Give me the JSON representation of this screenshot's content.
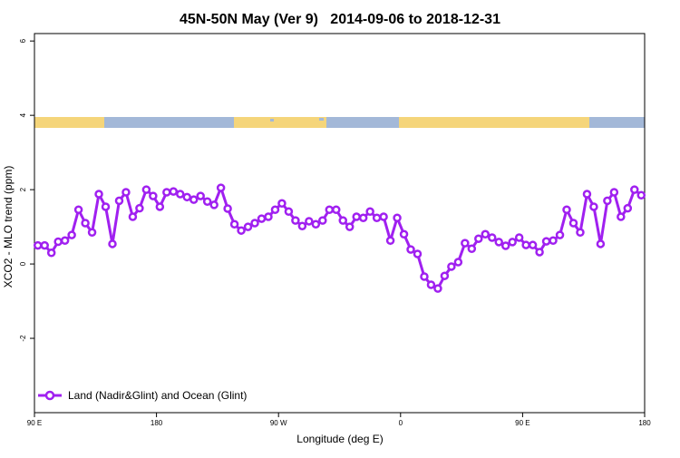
{
  "chart_data": {
    "type": "line",
    "title": "45N-50N May (Ver 9)   2014-09-06 to 2018-12-31",
    "xlabel": "Longitude (deg E)",
    "ylabel": "XCO2 - MLO trend (ppm)",
    "xlim": [
      90,
      540
    ],
    "ylim": [
      -4,
      6.2
    ],
    "xticks": [
      {
        "value": 90,
        "label": "90 E"
      },
      180,
      {
        "value": 270,
        "label": "90 W"
      },
      {
        "value": 360,
        "label": "0"
      },
      {
        "value": 450,
        "label": "90 E"
      },
      {
        "value": 540,
        "label": "180"
      }
    ],
    "yticks": [
      -2,
      0,
      2,
      4,
      6
    ],
    "legend": "bottom-left",
    "x": [
      92.5,
      97.5,
      102.5,
      107.5,
      112.5,
      117.5,
      122.5,
      127.5,
      132.5,
      137.5,
      142.5,
      147.5,
      152.5,
      157.5,
      162.5,
      167.5,
      172.5,
      177.5,
      182.5,
      187.5,
      192.5,
      197.5,
      202.5,
      207.5,
      212.5,
      217.5,
      222.5,
      227.5,
      232.5,
      237.5,
      242.5,
      247.5,
      252.5,
      257.5,
      262.5,
      267.5,
      272.5,
      277.5,
      282.5,
      287.5,
      292.5,
      297.5,
      302.5,
      307.5,
      312.5,
      317.5,
      322.5,
      327.5,
      332.5,
      337.5,
      342.5,
      347.5,
      352.5,
      357.5,
      362.5,
      367.5,
      372.5,
      377.5,
      382.5,
      387.5,
      392.5,
      397.5,
      402.5,
      407.5,
      412.5,
      417.5,
      422.5,
      427.5,
      432.5,
      437.5,
      442.5,
      447.5,
      452.5,
      457.5,
      462.5,
      467.5,
      472.5,
      477.5,
      482.5,
      487.5,
      492.5,
      497.5,
      502.5,
      507.5,
      512.5,
      517.5,
      522.5,
      527.5,
      532.5,
      537.5
    ],
    "series": [
      {
        "name": "Land (Nadir&Glint) and Ocean (Glint)",
        "color": "#a020f0",
        "values": [
          0.5,
          0.5,
          0.3,
          0.6,
          0.63,
          0.78,
          1.46,
          1.1,
          0.85,
          1.88,
          1.54,
          0.54,
          1.7,
          1.93,
          1.27,
          1.5,
          2.0,
          1.83,
          1.54,
          1.93,
          1.95,
          1.88,
          1.8,
          1.73,
          1.83,
          1.68,
          1.59,
          2.05,
          1.49,
          1.07,
          0.9,
          1.0,
          1.1,
          1.22,
          1.27,
          1.46,
          1.63,
          1.41,
          1.17,
          1.02,
          1.15,
          1.07,
          1.17,
          1.46,
          1.46,
          1.17,
          1.0,
          1.27,
          1.24,
          1.41,
          1.24,
          1.27,
          0.63,
          1.24,
          0.8,
          0.39,
          0.27,
          -0.34,
          -0.56,
          -0.66,
          -0.32,
          -0.07,
          0.05,
          0.56,
          0.41,
          0.68,
          0.8,
          0.71,
          0.59,
          0.49,
          0.59,
          0.71,
          0.51,
          0.51,
          0.32,
          0.61,
          0.63,
          0.78,
          1.46,
          1.1,
          0.85,
          1.88,
          1.54,
          0.54,
          1.7,
          1.93,
          1.27,
          1.5,
          2.0,
          1.85
        ]
      }
    ]
  }
}
